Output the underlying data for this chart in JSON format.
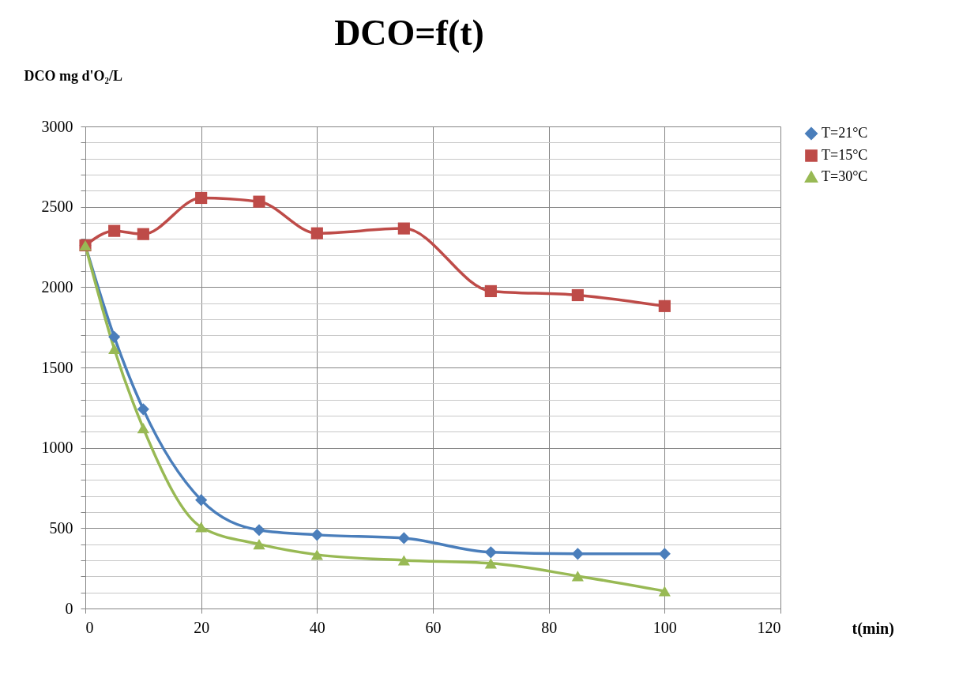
{
  "chart_data": {
    "type": "line",
    "title": "DCO=f(t)",
    "xlabel": "t(min)",
    "ylabel": "DCO mg d'O₂/L",
    "x": [
      0,
      5,
      10,
      20,
      30,
      40,
      55,
      70,
      85,
      100
    ],
    "series": [
      {
        "name": "T=21°C",
        "color": "#4a7ebb",
        "marker": "diamond",
        "values": [
          2260,
          1690,
          1240,
          675,
          488,
          458,
          438,
          350,
          340,
          340
        ]
      },
      {
        "name": "T=15°C",
        "color": "#be4b48",
        "marker": "square",
        "values": [
          2260,
          2350,
          2330,
          2555,
          2532,
          2335,
          2365,
          1975,
          1950,
          1882
        ]
      },
      {
        "name": "T=30°C",
        "color": "#98b954",
        "marker": "triangle",
        "values": [
          2260,
          1616,
          1123,
          507,
          400,
          335,
          300,
          281,
          202,
          108
        ]
      }
    ],
    "xlim": [
      0,
      120
    ],
    "xticks": [
      0,
      20,
      40,
      60,
      80,
      100,
      120
    ],
    "ylim": [
      0,
      3000
    ],
    "yticks": [
      0,
      {
        "value": 100,
        "label": null
      },
      {
        "value": 200,
        "label": null
      },
      {
        "value": 300,
        "label": null
      },
      {
        "value": 400,
        "label": null
      },
      500,
      {
        "value": 600,
        "label": null
      },
      {
        "value": 700,
        "label": null
      },
      {
        "value": 800,
        "label": null
      },
      {
        "value": 900,
        "label": null
      },
      1000,
      {
        "value": 1100,
        "label": null
      },
      {
        "value": 1200,
        "label": null
      },
      {
        "value": 1300,
        "label": null
      },
      {
        "value": 1400,
        "label": null
      },
      1500,
      {
        "value": 1600,
        "label": null
      },
      {
        "value": 1700,
        "label": null
      },
      {
        "value": 1800,
        "label": null
      },
      {
        "value": 1900,
        "label": null
      },
      2000,
      {
        "value": 2100,
        "label": null
      },
      {
        "value": 2200,
        "label": null
      },
      {
        "value": 2300,
        "label": null
      },
      {
        "value": 2400,
        "label": null
      },
      2500,
      {
        "value": 2600,
        "label": null
      },
      {
        "value": 2700,
        "label": null
      },
      {
        "value": 2800,
        "label": null
      },
      {
        "value": 2900,
        "label": null
      },
      3000
    ],
    "grid": true,
    "legend": "right",
    "line_style": "solid"
  }
}
